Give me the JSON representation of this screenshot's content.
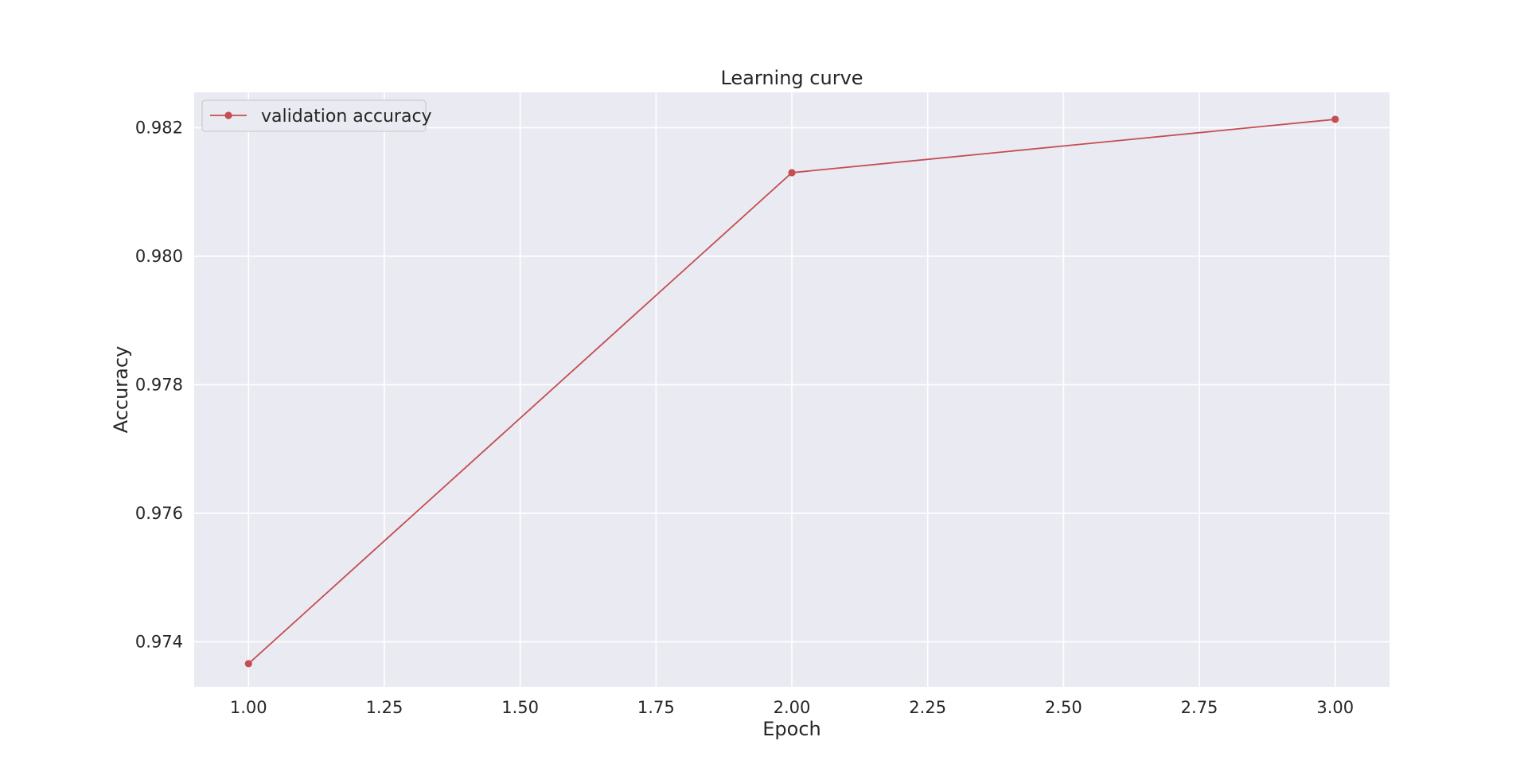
{
  "chart_data": {
    "type": "line",
    "title": "Learning curve",
    "xlabel": "Epoch",
    "ylabel": "Accuracy",
    "x": [
      1.0,
      2.0,
      3.0
    ],
    "series": [
      {
        "name": "validation accuracy",
        "color": "#c44e52",
        "marker": "circle",
        "values": [
          0.97366,
          0.9813,
          0.98213
        ]
      }
    ],
    "xlim": [
      0.9,
      3.1
    ],
    "ylim": [
      0.9733,
      0.98255
    ],
    "xticks": [
      1.0,
      1.25,
      1.5,
      1.75,
      2.0,
      2.25,
      2.5,
      2.75,
      3.0
    ],
    "xtick_labels": [
      "1.00",
      "1.25",
      "1.50",
      "1.75",
      "2.00",
      "2.25",
      "2.50",
      "2.75",
      "3.00"
    ],
    "yticks": [
      0.974,
      0.976,
      0.978,
      0.98,
      0.982
    ],
    "ytick_labels": [
      "0.974",
      "0.976",
      "0.978",
      "0.980",
      "0.982"
    ],
    "grid": true,
    "legend_position": "upper left",
    "plot_background": "#eaeaf2",
    "grid_color": "#ffffff"
  }
}
